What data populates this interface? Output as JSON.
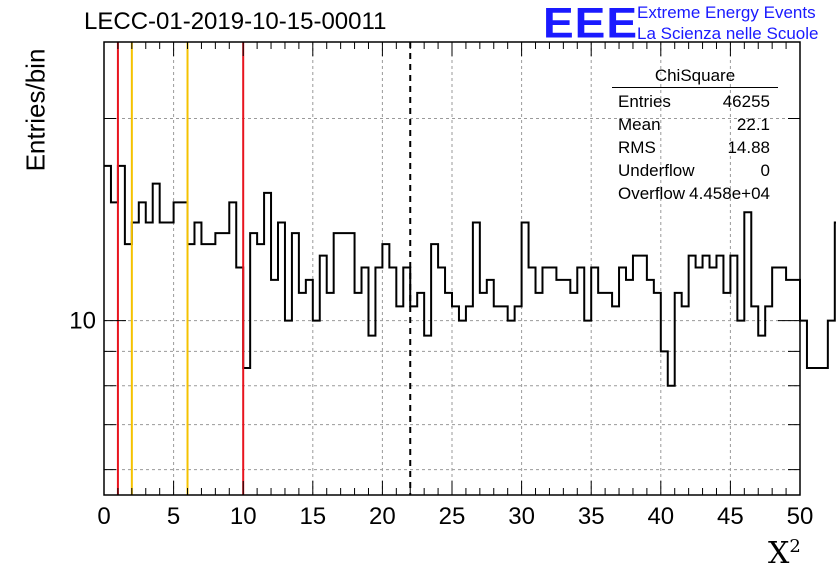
{
  "header": {
    "title": "LECC-01-2019-10-15-00011",
    "logo_text": "EEE",
    "logo_line1": "Extreme Energy Events",
    "logo_line2": "La Scienza nelle Scuole"
  },
  "stats_box": {
    "title": "ChiSquare",
    "rows": [
      {
        "label": "Entries",
        "value": "46255"
      },
      {
        "label": "Mean",
        "value": "22.1"
      },
      {
        "label": "RMS",
        "value": "14.88"
      },
      {
        "label": "Underflow",
        "value": "0"
      },
      {
        "label": "Overflow",
        "value": "4.458e+04"
      }
    ]
  },
  "chart_data": {
    "type": "histogram",
    "title": "LECC-01-2019-10-15-00011",
    "xlabel": "X²",
    "ylabel": "Entries/bin",
    "xlim": [
      0,
      50
    ],
    "ylim": [
      5.5,
      26
    ],
    "y_scale": "log",
    "x_ticks": [
      0,
      5,
      10,
      15,
      20,
      25,
      30,
      35,
      40,
      45,
      50
    ],
    "y_tick_labels": [
      {
        "value": 10,
        "label": "10"
      }
    ],
    "grid": true,
    "bin_width": 0.5,
    "bin_edges_start": 0,
    "bin_values": [
      17,
      15,
      17,
      13,
      14,
      15,
      14,
      16,
      14,
      14,
      15,
      15,
      13,
      14,
      13,
      13,
      13.5,
      13.5,
      15,
      12,
      8.5,
      13.5,
      13,
      15.5,
      11.5,
      14,
      10,
      13.5,
      11,
      11.5,
      10,
      12.5,
      11,
      13.5,
      13.5,
      13.5,
      11,
      12,
      9.5,
      12,
      13,
      12,
      10.5,
      12,
      10.5,
      11,
      9.5,
      13,
      12,
      11,
      10.5,
      10,
      10.5,
      14,
      11,
      11.5,
      10.5,
      10.5,
      10,
      10.5,
      14,
      12,
      11,
      12,
      12,
      11.5,
      11.5,
      11,
      12,
      10,
      12,
      11,
      11,
      10.5,
      12,
      11.5,
      12.5,
      12.5,
      11.5,
      11,
      9,
      8,
      11,
      10.5,
      12.5,
      12,
      12.5,
      12,
      12.5,
      11,
      12.5,
      10,
      14.5,
      10.5,
      9.5,
      10.5,
      12,
      12,
      11.5,
      11.5,
      10,
      8.5,
      8.5,
      8.5,
      10,
      14,
      12
    ],
    "vertical_lines": [
      {
        "x": 1,
        "color": "#e8141e",
        "style": "solid"
      },
      {
        "x": 2,
        "color": "#f5c200",
        "style": "solid"
      },
      {
        "x": 6,
        "color": "#f5c200",
        "style": "solid"
      },
      {
        "x": 10,
        "color": "#e8141e",
        "style": "solid"
      },
      {
        "x": 22,
        "color": "#000000",
        "style": "dashed"
      }
    ],
    "colors": {
      "histogram": "#000000",
      "grid": "#9a9a9a",
      "logo": "#1a1aff"
    }
  }
}
